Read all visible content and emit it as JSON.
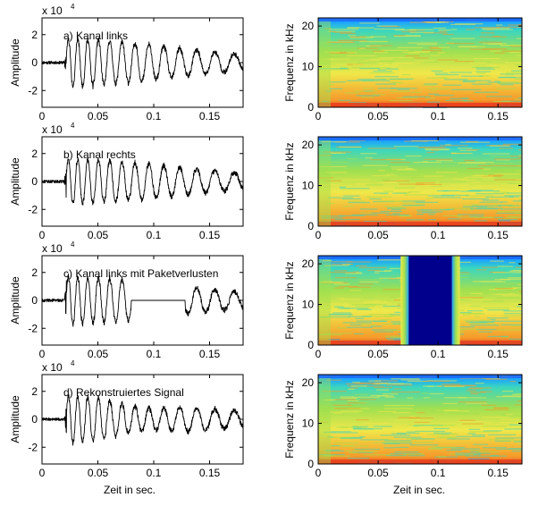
{
  "figure": {
    "xlabel": "Zeit in sec.",
    "colors": {
      "waveform": "#000000",
      "background": "#ffffff",
      "spec_dark": "#00008c",
      "spec_blue": "#1aa0ff",
      "spec_cyan": "#3ad6c0",
      "spec_green": "#a0e050",
      "spec_yellow": "#f0e84a",
      "spec_orange": "#f59a2a",
      "spec_red": "#e8401e"
    }
  },
  "chart_data": [
    {
      "type": "line",
      "panel": "a",
      "annotation": "a) Kanal links",
      "ylabel": "Amplitude",
      "exponent_label": "x 10",
      "exponent_power": "4",
      "xlim": [
        0,
        0.18
      ],
      "ylim": [
        -3.2,
        3.2
      ],
      "xticks": [
        0,
        0.05,
        0.1,
        0.15
      ],
      "xtick_labels": [
        "0",
        "0.05",
        "0.1",
        "0.15"
      ],
      "yticks": [
        -2,
        0,
        2
      ],
      "ytick_labels": [
        "-2",
        "0",
        "2"
      ],
      "signal": {
        "onset": 0.022,
        "amplitude_envelope": [
          [
            0.0,
            0.12
          ],
          [
            0.02,
            0.12
          ],
          [
            0.022,
            1.8
          ],
          [
            0.05,
            1.7
          ],
          [
            0.09,
            1.4
          ],
          [
            0.13,
            1.0
          ],
          [
            0.18,
            0.6
          ]
        ],
        "period_start": 0.0065,
        "period_end": 0.0185
      }
    },
    {
      "type": "line",
      "panel": "b",
      "annotation": "b) Kanal rechts",
      "ylabel": "Amplitude",
      "exponent_label": "x 10",
      "exponent_power": "4",
      "xlim": [
        0,
        0.18
      ],
      "ylim": [
        -3.2,
        3.2
      ],
      "xticks": [
        0,
        0.05,
        0.1,
        0.15
      ],
      "xtick_labels": [
        "0",
        "0.05",
        "0.1",
        "0.15"
      ],
      "yticks": [
        -2,
        0,
        2
      ],
      "ytick_labels": [
        "-2",
        "0",
        "2"
      ],
      "signal": {
        "onset": 0.022,
        "amplitude_envelope": [
          [
            0.0,
            0.12
          ],
          [
            0.02,
            0.12
          ],
          [
            0.022,
            1.7
          ],
          [
            0.05,
            1.6
          ],
          [
            0.09,
            1.35
          ],
          [
            0.13,
            1.0
          ],
          [
            0.18,
            0.6
          ]
        ],
        "period_start": 0.0065,
        "period_end": 0.0185
      }
    },
    {
      "type": "line",
      "panel": "c",
      "annotation": "c) Kanal links mit Paketverlusten",
      "ylabel": "Amplitude",
      "exponent_label": "x 10",
      "exponent_power": "4",
      "xlim": [
        0,
        0.18
      ],
      "ylim": [
        -3.2,
        3.2
      ],
      "xticks": [
        0,
        0.05,
        0.1,
        0.15
      ],
      "xtick_labels": [
        "0",
        "0.05",
        "0.1",
        "0.15"
      ],
      "yticks": [
        -2,
        0,
        2
      ],
      "ytick_labels": [
        "-2",
        "0",
        "2"
      ],
      "signal": {
        "onset": 0.022,
        "amplitude_envelope": [
          [
            0.0,
            0.12
          ],
          [
            0.02,
            0.12
          ],
          [
            0.022,
            1.8
          ],
          [
            0.05,
            1.7
          ],
          [
            0.09,
            1.4
          ],
          [
            0.13,
            1.0
          ],
          [
            0.18,
            0.6
          ]
        ],
        "period_start": 0.0065,
        "period_end": 0.0185,
        "gap": [
          0.08,
          0.128
        ]
      }
    },
    {
      "type": "line",
      "panel": "d",
      "annotation": "d) Rekonstruiertes Signal",
      "ylabel": "Amplitude",
      "xlabel": "Zeit in sec.",
      "exponent_label": "x 10",
      "exponent_power": "4",
      "xlim": [
        0,
        0.18
      ],
      "ylim": [
        -3.2,
        3.2
      ],
      "xticks": [
        0,
        0.05,
        0.1,
        0.15
      ],
      "xtick_labels": [
        "0",
        "0.05",
        "0.1",
        "0.15"
      ],
      "yticks": [
        -2,
        0,
        2
      ],
      "ytick_labels": [
        "-2",
        "0",
        "2"
      ],
      "signal": {
        "onset": 0.022,
        "amplitude_envelope": [
          [
            0.0,
            0.12
          ],
          [
            0.02,
            0.12
          ],
          [
            0.022,
            1.8
          ],
          [
            0.05,
            1.6
          ],
          [
            0.08,
            1.0
          ],
          [
            0.1,
            0.8
          ],
          [
            0.13,
            0.95
          ],
          [
            0.18,
            0.6
          ]
        ],
        "period_start": 0.0065,
        "period_end": 0.0185
      }
    },
    {
      "type": "heatmap",
      "panel": "a",
      "ylabel": "Frequenz in kHz",
      "xlim": [
        0,
        0.17
      ],
      "ylim": [
        0,
        22
      ],
      "xticks": [
        0,
        0.05,
        0.1,
        0.15
      ],
      "xtick_labels": [
        "0",
        "0.05",
        "0.1",
        "0.15"
      ],
      "yticks": [
        0,
        10,
        20
      ],
      "ytick_labels": [
        "0",
        "10",
        "20"
      ],
      "gap": null
    },
    {
      "type": "heatmap",
      "panel": "b",
      "ylabel": "Frequenz in kHz",
      "xlim": [
        0,
        0.17
      ],
      "ylim": [
        0,
        22
      ],
      "xticks": [
        0,
        0.05,
        0.1,
        0.15
      ],
      "xtick_labels": [
        "0",
        "0.05",
        "0.1",
        "0.15"
      ],
      "yticks": [
        0,
        10,
        20
      ],
      "ytick_labels": [
        "0",
        "10",
        "20"
      ],
      "gap": null
    },
    {
      "type": "heatmap",
      "panel": "c",
      "ylabel": "Frequenz in kHz",
      "xlim": [
        0,
        0.17
      ],
      "ylim": [
        0,
        22
      ],
      "xticks": [
        0,
        0.05,
        0.1,
        0.15
      ],
      "xtick_labels": [
        "0",
        "0.05",
        "0.1",
        "0.15"
      ],
      "yticks": [
        0,
        10,
        20
      ],
      "ytick_labels": [
        "0",
        "10",
        "20"
      ],
      "gap": [
        0.0755,
        0.1115
      ]
    },
    {
      "type": "heatmap",
      "panel": "d",
      "ylabel": "Frequenz in kHz",
      "xlabel": "Zeit in sec.",
      "xlim": [
        0,
        0.17
      ],
      "ylim": [
        0,
        22
      ],
      "xticks": [
        0,
        0.05,
        0.1,
        0.15
      ],
      "xtick_labels": [
        "0",
        "0.05",
        "0.1",
        "0.15"
      ],
      "yticks": [
        0,
        10,
        20
      ],
      "ytick_labels": [
        "0",
        "10",
        "20"
      ],
      "gap": null
    }
  ]
}
